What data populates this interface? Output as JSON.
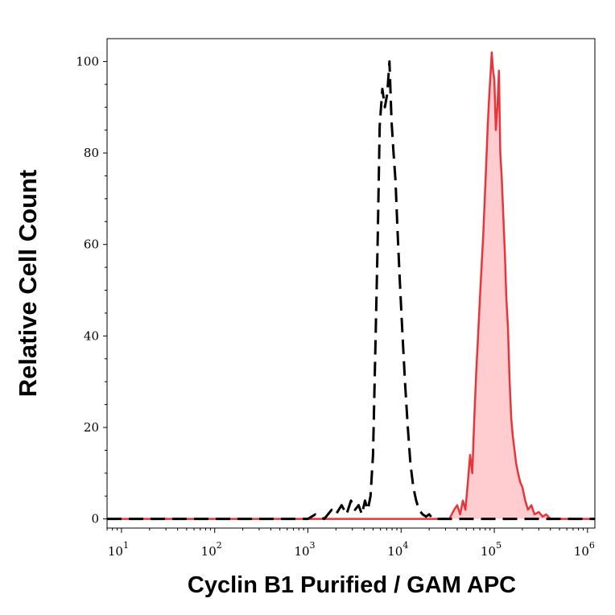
{
  "chart_data": {
    "type": "area",
    "title": "",
    "xlabel": "Cyclin B1 Purified / GAM APC",
    "ylabel": "Relative Cell Count",
    "x_scale": "log",
    "xlim": [
      7,
      1200000
    ],
    "ylim": [
      -2,
      105
    ],
    "grid": false,
    "x_ticks": [
      {
        "value": 10,
        "base": "10",
        "exp": "1"
      },
      {
        "value": 100,
        "base": "10",
        "exp": "2"
      },
      {
        "value": 1000,
        "base": "10",
        "exp": "3"
      },
      {
        "value": 10000,
        "base": "10",
        "exp": "4"
      },
      {
        "value": 100000,
        "base": "10",
        "exp": "5"
      },
      {
        "value": 1000000,
        "base": "10",
        "exp": "6"
      }
    ],
    "y_ticks": [
      {
        "value": 0,
        "label": "0"
      },
      {
        "value": 20,
        "label": "20"
      },
      {
        "value": 40,
        "label": "40"
      },
      {
        "value": 60,
        "label": "60"
      },
      {
        "value": 80,
        "label": "80"
      },
      {
        "value": 100,
        "label": "100"
      }
    ],
    "series": [
      {
        "style": "dashed",
        "color": "#000000",
        "fill": "none",
        "x": [
          7,
          1000,
          1200,
          1500,
          1800,
          2000,
          2300,
          2600,
          2900,
          3200,
          3500,
          3800,
          4100,
          4400,
          4700,
          5000,
          5300,
          5600,
          5900,
          6300,
          6700,
          7100,
          7500,
          7900,
          8300,
          8700,
          9200,
          9700,
          10300,
          11000,
          11800,
          12600,
          13500,
          14500,
          15600,
          17000,
          18500,
          20000,
          22000,
          25000,
          30000,
          1200000
        ],
        "y": [
          0,
          0,
          1,
          0,
          2,
          1,
          3,
          1,
          4,
          2,
          3,
          1,
          4,
          2,
          5,
          14,
          38,
          60,
          86,
          94,
          90,
          93,
          100,
          87,
          80,
          74,
          62,
          52,
          41,
          30,
          20,
          12,
          7,
          4,
          2,
          1,
          0.5,
          1,
          0,
          0,
          0,
          0
        ]
      },
      {
        "style": "solid",
        "color": "#e8353b",
        "fill": "#ffcccf",
        "x": [
          7,
          33000,
          37000,
          40000,
          43000,
          46000,
          49000,
          52000,
          55000,
          58000,
          61000,
          64000,
          67000,
          70000,
          73000,
          76000,
          79000,
          82000,
          85000,
          88000,
          91000,
          94000,
          97000,
          100000,
          104000,
          108000,
          112000,
          116000,
          120000,
          125000,
          130000,
          135000,
          140000,
          146000,
          152000,
          158000,
          165000,
          172000,
          180000,
          190000,
          200000,
          215000,
          230000,
          250000,
          270000,
          300000,
          330000,
          360000,
          400000,
          1200000
        ],
        "y": [
          0,
          0,
          2,
          3,
          1,
          4,
          2,
          8,
          14,
          10,
          22,
          32,
          40,
          48,
          55,
          62,
          70,
          78,
          86,
          92,
          97,
          102,
          98,
          96,
          85,
          90,
          98,
          80,
          75,
          66,
          58,
          48,
          42,
          30,
          22,
          18,
          15,
          12,
          10,
          8,
          7,
          4,
          2,
          3,
          1,
          1.5,
          0.5,
          1,
          0,
          0
        ]
      }
    ]
  }
}
